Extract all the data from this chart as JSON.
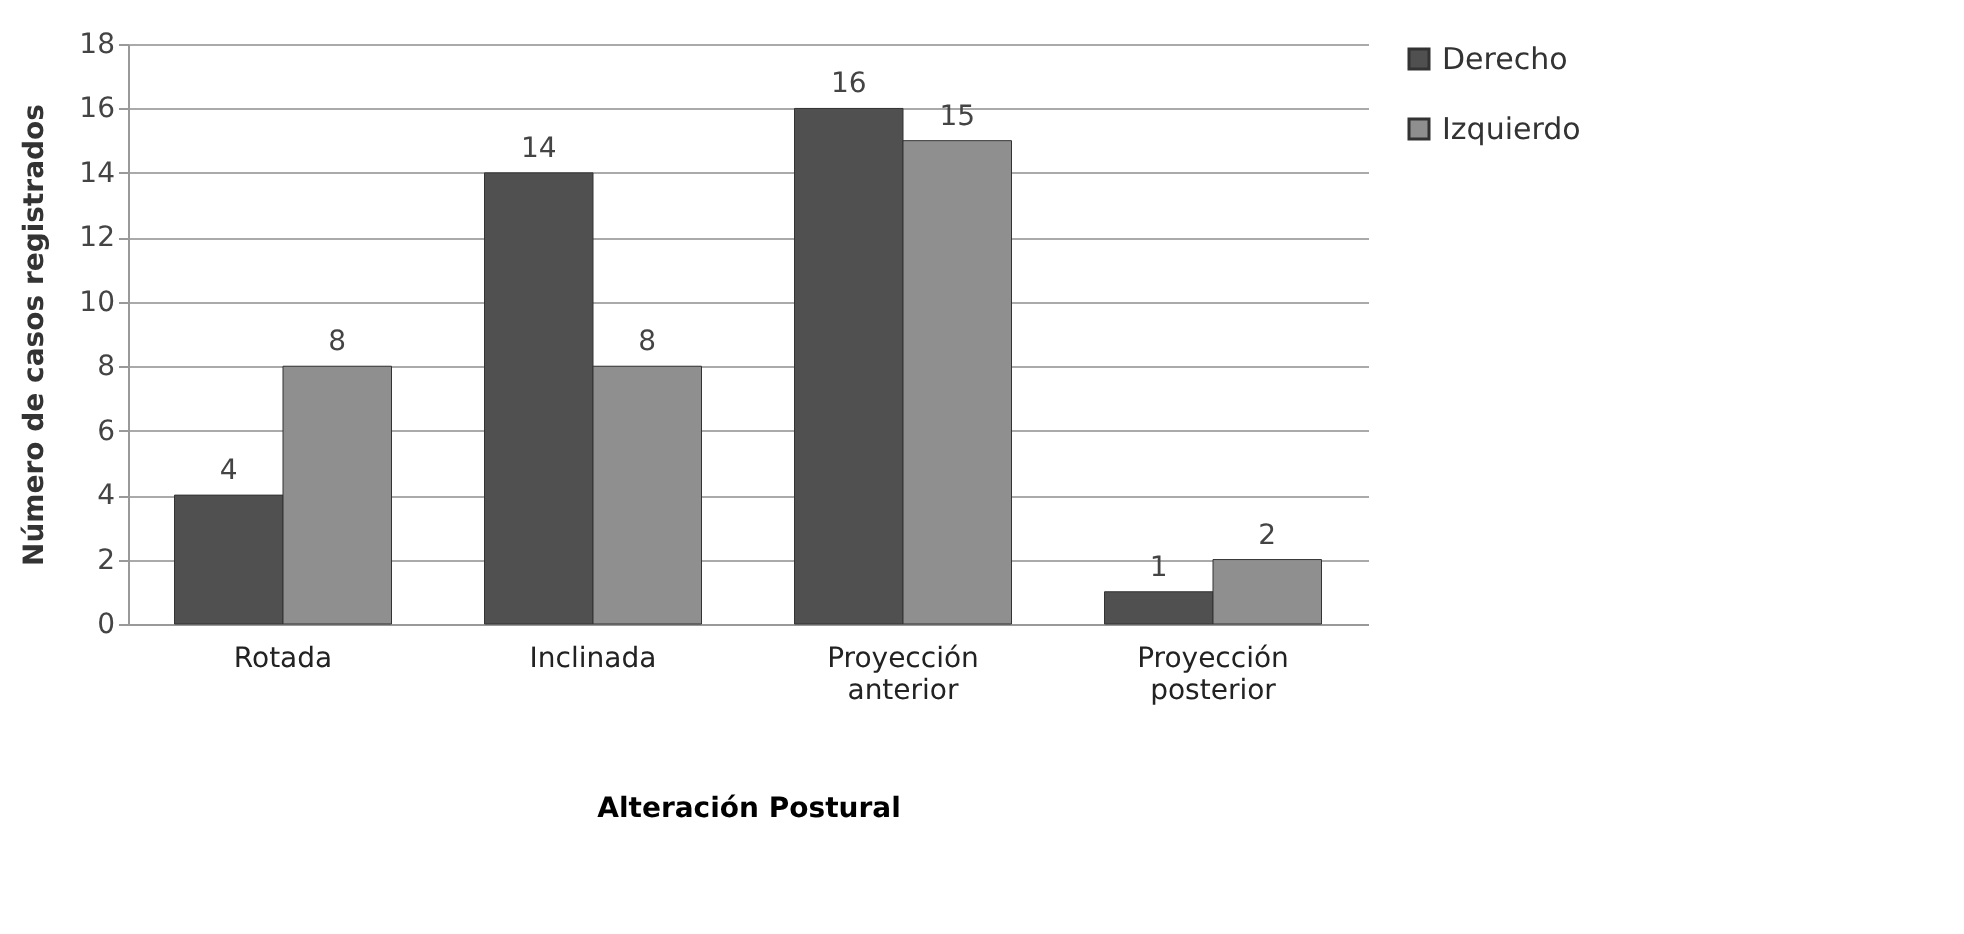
{
  "chart_data": {
    "type": "bar",
    "xlabel": "Alteración Postural",
    "ylabel": "Número de casos registrados",
    "categories": [
      "Rotada",
      "Inclinada",
      "Proyección anterior",
      "Proyección posterior"
    ],
    "series": [
      {
        "name": "Derecho",
        "color": "#505050",
        "values": [
          4,
          14,
          16,
          1
        ]
      },
      {
        "name": "Izquierdo",
        "color": "#8f8f8f",
        "values": [
          8,
          8,
          15,
          2
        ]
      }
    ],
    "ylim": [
      0,
      18
    ],
    "yticks": [
      0,
      2,
      4,
      6,
      8,
      10,
      12,
      14,
      16,
      18
    ],
    "grid": "y",
    "legend": "right",
    "data_labels": true
  }
}
